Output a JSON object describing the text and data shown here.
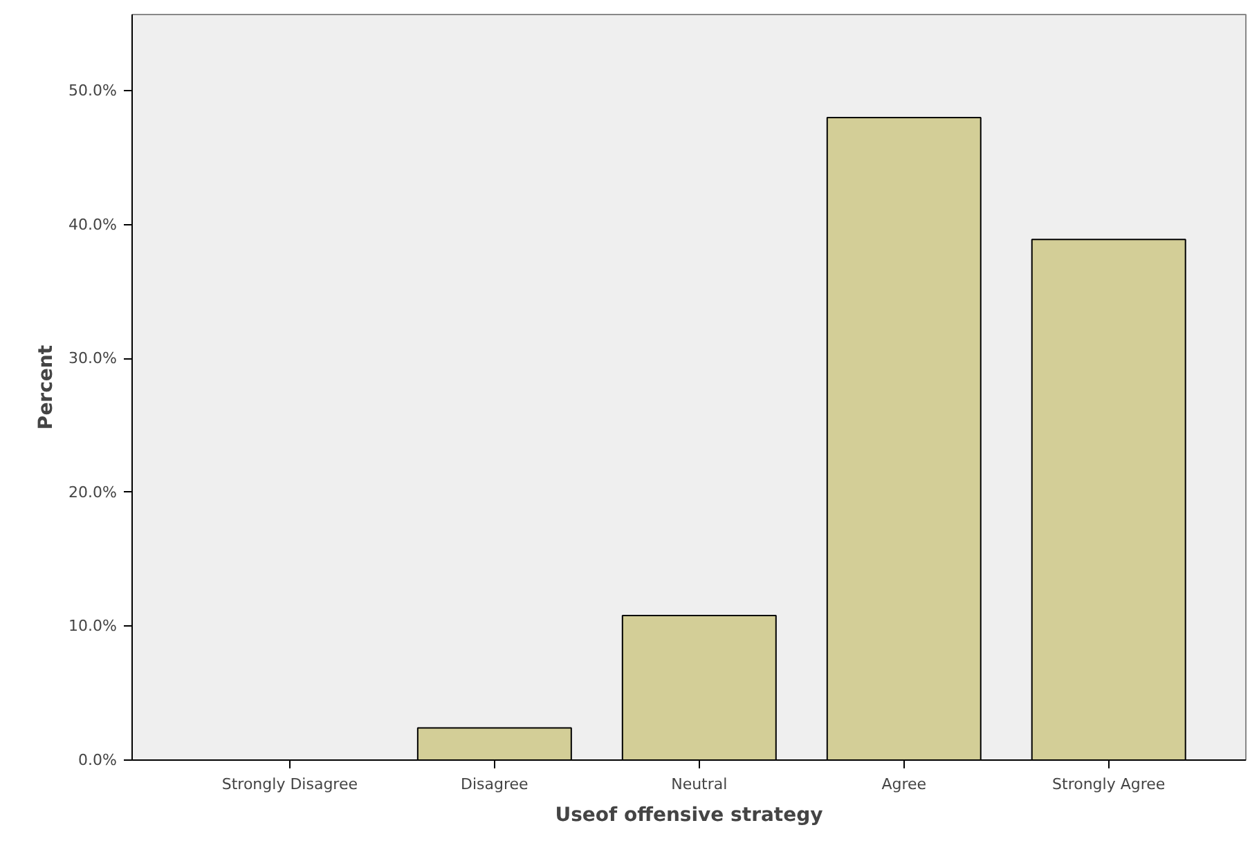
{
  "chart_data": {
    "type": "bar",
    "xlabel": "Useof offensive strategy",
    "ylabel": "Percent",
    "categories": [
      "Strongly Disagree",
      "Disagree",
      "Neutral",
      "Agree",
      "Strongly Agree"
    ],
    "values": [
      0,
      2.4,
      10.8,
      48.0,
      38.9
    ],
    "color": "#d3ce97",
    "ylim": [
      0,
      55.7
    ],
    "yticks": [
      {
        "value": 0,
        "label": "0.0%"
      },
      {
        "value": 10,
        "label": "10.0%"
      },
      {
        "value": 20,
        "label": "20.0%"
      },
      {
        "value": 30,
        "label": "30.0%"
      },
      {
        "value": 40,
        "label": "40.0%"
      },
      {
        "value": 50,
        "label": "50.0%"
      }
    ],
    "grid": false
  }
}
